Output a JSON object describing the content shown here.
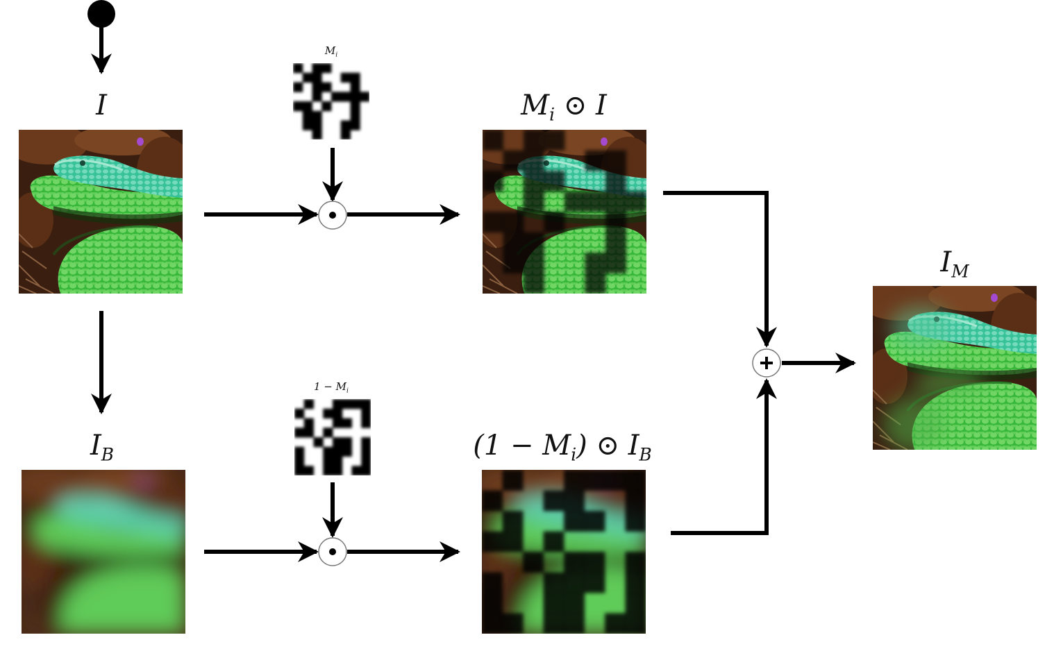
{
  "labels": {
    "input": {
      "main": "I",
      "sub": ""
    },
    "mask": {
      "main": "M",
      "sub": "i"
    },
    "masked_input": {
      "main": "M",
      "sub": "i",
      "rest": " ⊙ I"
    },
    "blurred": {
      "main": "I",
      "sub": "B"
    },
    "inv_mask": {
      "pre": "1 − M",
      "sub": "i"
    },
    "masked_blurred": {
      "pre": "(1 − M",
      "sub": "i",
      "mid": ") ⊙ I",
      "sub2": "B"
    },
    "output": {
      "main": "I",
      "sub": "M"
    }
  },
  "operators": {
    "hadamard_symbol": "⊙",
    "sum_symbol": "+"
  },
  "mask_pattern": [
    [
      0,
      1,
      0,
      0,
      1,
      1,
      1,
      1
    ],
    [
      1,
      0,
      0,
      1,
      1,
      0,
      0,
      1
    ],
    [
      0,
      1,
      0,
      0,
      1,
      1,
      0,
      1
    ],
    [
      1,
      1,
      0,
      1,
      0,
      0,
      0,
      0
    ],
    [
      0,
      0,
      1,
      0,
      1,
      1,
      0,
      1
    ],
    [
      1,
      0,
      0,
      1,
      1,
      1,
      0,
      1
    ],
    [
      1,
      0,
      0,
      1,
      1,
      0,
      0,
      1
    ],
    [
      1,
      1,
      0,
      1,
      1,
      0,
      1,
      1
    ]
  ],
  "colors": {
    "foliage_dark": "#3a1e10",
    "foliage_mid": "#6b3a1c",
    "snake_green": "#3fbf3a",
    "snake_teal": "#3ec7a6",
    "snake_light": "#8fd68a",
    "stroke": "#000000"
  }
}
